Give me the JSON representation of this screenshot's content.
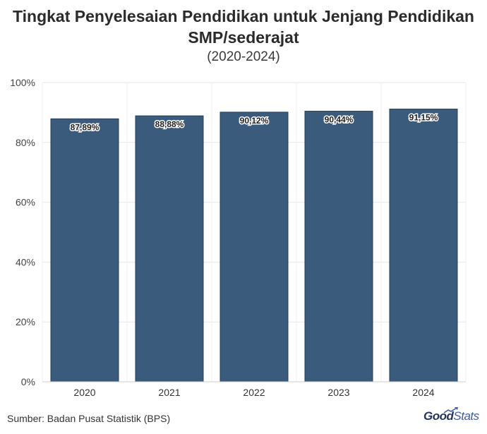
{
  "header": {
    "title_line1": "Tingkat Penyelesaian Pendidikan untuk Jenjang Pendidikan",
    "title_line2": "SMP/sederajat",
    "subtitle": "(2020-2024)"
  },
  "footer": {
    "source": "Sumber: Badan Pusat Statistik (BPS)",
    "logo_good": "Good",
    "logo_stats": "Stats"
  },
  "colors": {
    "bar": "#3a5b7c",
    "bar_edge": "#2a3f55",
    "grid": "#e6e6e6",
    "text": "#2b2b2b"
  },
  "chart_data": {
    "type": "bar",
    "categories": [
      "2020",
      "2021",
      "2022",
      "2023",
      "2024"
    ],
    "values": [
      87.89,
      88.88,
      90.12,
      90.44,
      91.15
    ],
    "value_labels": [
      "87,89%",
      "88,88%",
      "90,12%",
      "90,44%",
      "91,15%"
    ],
    "y_ticks": [
      "0%",
      "20%",
      "40%",
      "60%",
      "80%",
      "100%"
    ],
    "y_tick_values": [
      0,
      20,
      40,
      60,
      80,
      100
    ],
    "ylim": [
      0,
      100
    ],
    "xlabel": "",
    "ylabel": "",
    "grid": true,
    "legend": "none"
  }
}
